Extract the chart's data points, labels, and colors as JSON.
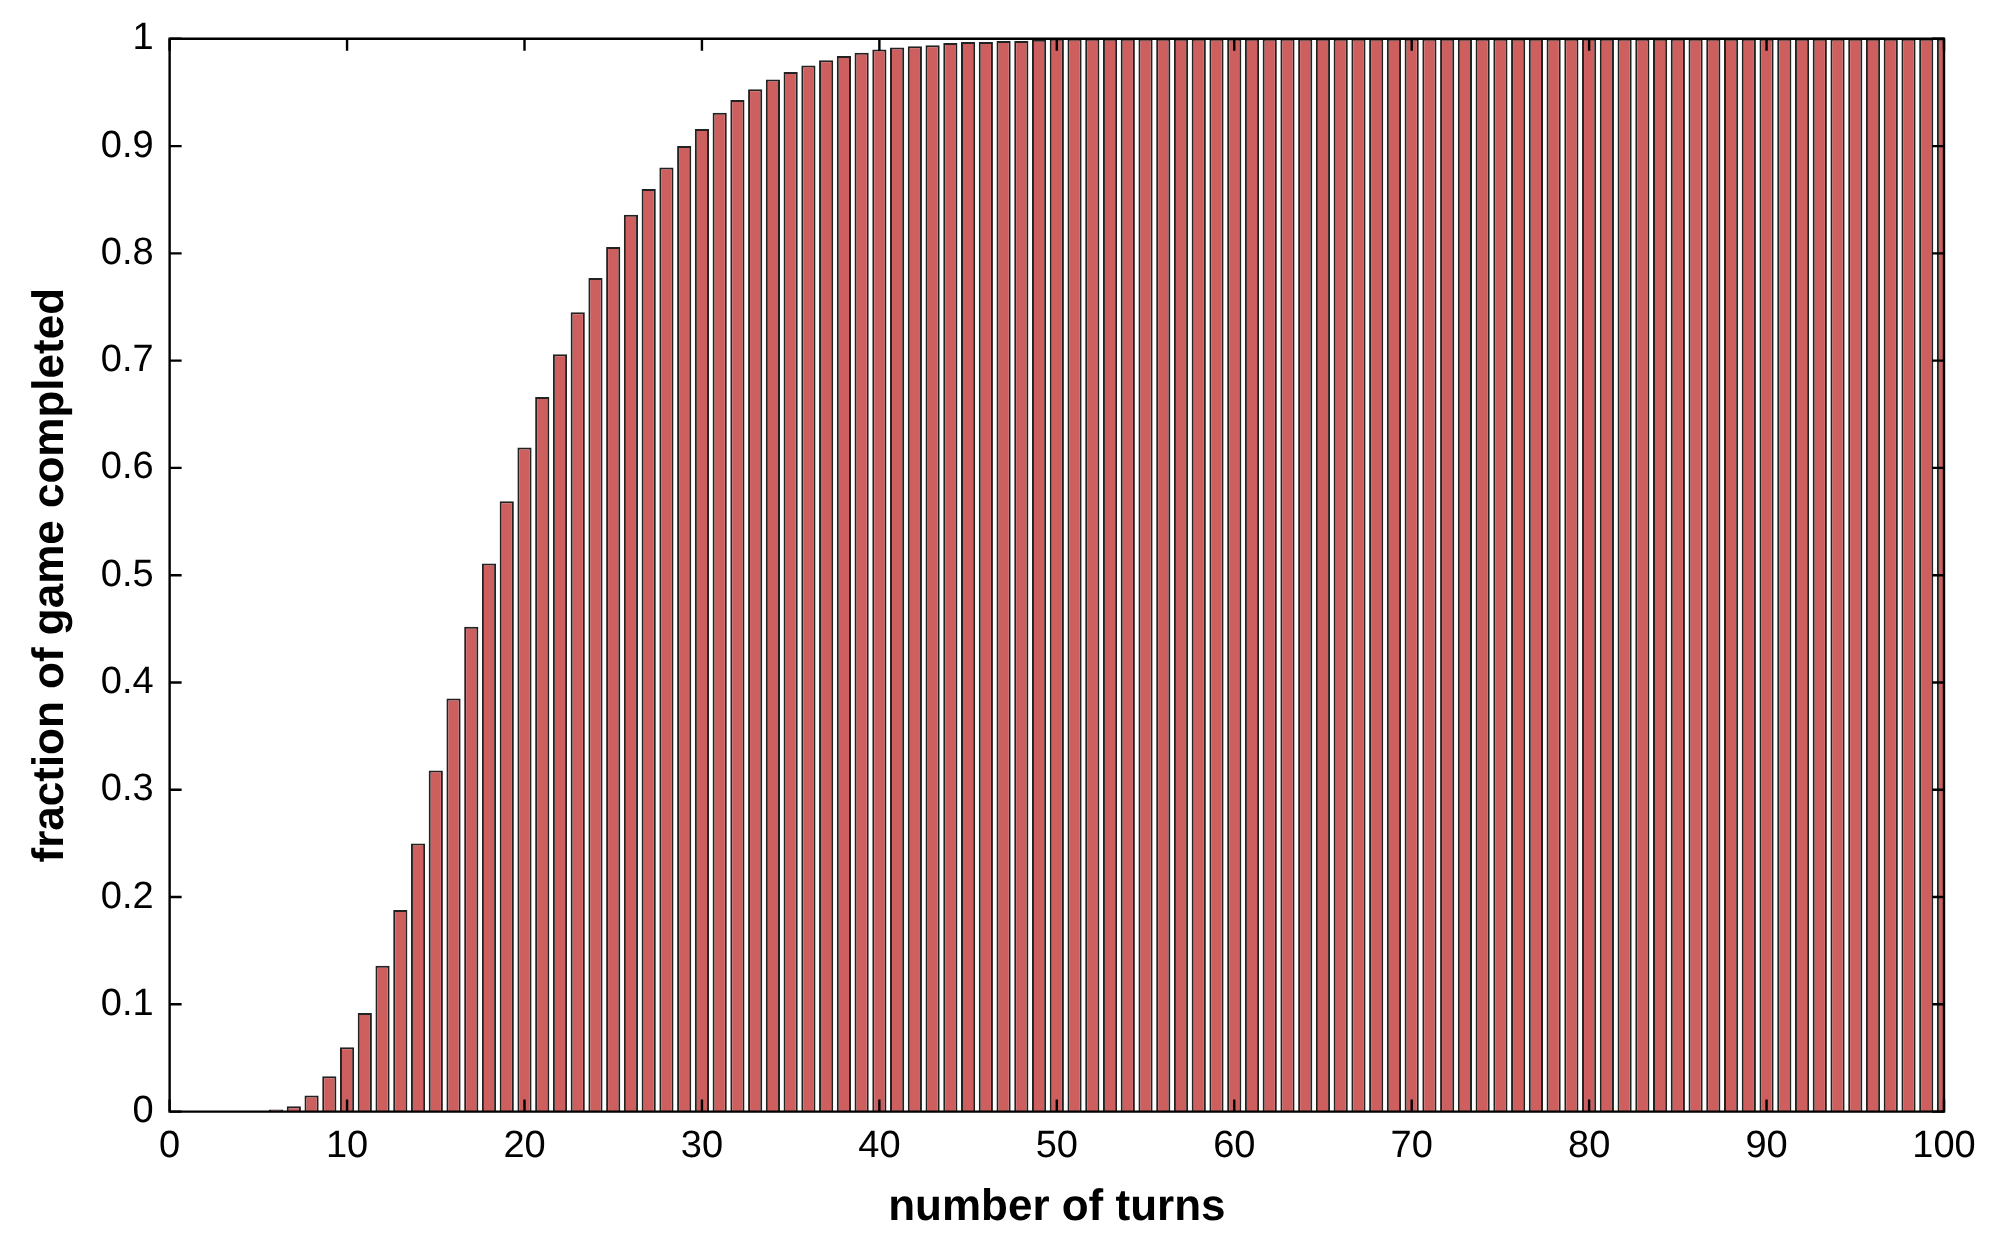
{
  "chart_data": {
    "type": "bar",
    "xlabel": "number of turns",
    "ylabel": "fraction of game completed",
    "color": "#cd5f5f",
    "x": [
      1,
      2,
      3,
      4,
      5,
      6,
      7,
      8,
      9,
      10,
      11,
      12,
      13,
      14,
      15,
      16,
      17,
      18,
      19,
      20,
      21,
      22,
      23,
      24,
      25,
      26,
      27,
      28,
      29,
      30,
      31,
      32,
      33,
      34,
      35,
      36,
      37,
      38,
      39,
      40,
      41,
      42,
      43,
      44,
      45,
      46,
      47,
      48,
      49,
      50,
      51,
      52,
      53,
      54,
      55,
      56,
      57,
      58,
      59,
      60,
      61,
      62,
      63,
      64,
      65,
      66,
      67,
      68,
      69,
      70,
      71,
      72,
      73,
      74,
      75,
      76,
      77,
      78,
      79,
      80,
      81,
      82,
      83,
      84,
      85,
      86,
      87,
      88,
      89,
      90,
      91,
      92,
      93,
      94,
      95,
      96,
      97,
      98,
      99,
      100
    ],
    "values": [
      0,
      0,
      0,
      0,
      0,
      0.002,
      0.005,
      0.015,
      0.033,
      0.06,
      0.092,
      0.136,
      0.188,
      0.25,
      0.318,
      0.385,
      0.452,
      0.511,
      0.569,
      0.619,
      0.666,
      0.706,
      0.745,
      0.777,
      0.806,
      0.836,
      0.86,
      0.88,
      0.9,
      0.916,
      0.931,
      0.943,
      0.953,
      0.962,
      0.969,
      0.975,
      0.98,
      0.984,
      0.987,
      0.99,
      0.992,
      0.993,
      0.994,
      0.996,
      0.997,
      0.997,
      0.998,
      0.998,
      0.999,
      1,
      1,
      1,
      1,
      1,
      1,
      1,
      1,
      1,
      1,
      1,
      1,
      1,
      1,
      1,
      1,
      1,
      1,
      1,
      1,
      1,
      1,
      1,
      1,
      1,
      1,
      1,
      1,
      1,
      1,
      1,
      1,
      1,
      1,
      1,
      1,
      1,
      1,
      1,
      1,
      1,
      1,
      1,
      1,
      1,
      1,
      1,
      1,
      1,
      1,
      1
    ],
    "xlim": [
      0,
      100
    ],
    "xticks": [
      0,
      10,
      20,
      30,
      40,
      50,
      60,
      70,
      80,
      90,
      100
    ],
    "ylim": [
      0,
      1
    ],
    "yticks": [
      0,
      0.1,
      0.2,
      0.3,
      0.4,
      0.5,
      0.6,
      0.7,
      0.8,
      0.9,
      1
    ],
    "grid": false,
    "legend": false
  }
}
